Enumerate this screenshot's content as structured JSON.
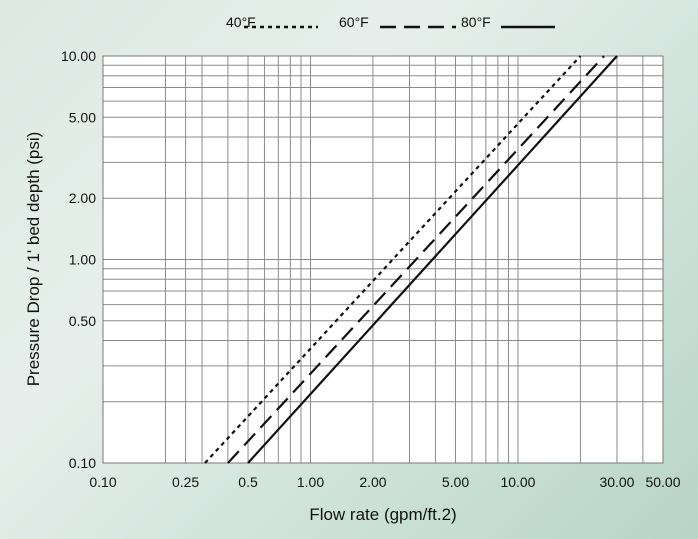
{
  "chart_data": {
    "type": "line",
    "xlabel": "Flow rate (gpm/ft.2)",
    "ylabel": "Pressure Drop / 1' bed depth (psi)",
    "x_scale": "log",
    "y_scale": "log",
    "xlim": [
      0.1,
      50
    ],
    "ylim": [
      0.1,
      10
    ],
    "x_ticks": [
      {
        "value": 0.1,
        "label": "0.10"
      },
      {
        "value": 0.25,
        "label": "0.25"
      },
      {
        "value": 0.5,
        "label": "0.5"
      },
      {
        "value": 1,
        "label": "1.00"
      },
      {
        "value": 2,
        "label": "2.00"
      },
      {
        "value": 5,
        "label": "5.00"
      },
      {
        "value": 10,
        "label": "10.00"
      },
      {
        "value": 30,
        "label": "30.00"
      },
      {
        "value": 50,
        "label": "50.00"
      }
    ],
    "y_ticks": [
      {
        "value": 0.1,
        "label": "0.10"
      },
      {
        "value": 0.5,
        "label": "0.50"
      },
      {
        "value": 1,
        "label": "1.00"
      },
      {
        "value": 2,
        "label": "2.00"
      },
      {
        "value": 5,
        "label": "5.00"
      },
      {
        "value": 10,
        "label": "10.00"
      }
    ],
    "x_grid": [
      0.1,
      0.2,
      0.25,
      0.3,
      0.4,
      0.5,
      0.6,
      0.7,
      0.8,
      0.9,
      1,
      2,
      3,
      4,
      5,
      6,
      7,
      8,
      9,
      10,
      20,
      30,
      40,
      50
    ],
    "y_grid": [
      0.1,
      0.2,
      0.3,
      0.4,
      0.5,
      0.6,
      0.7,
      0.8,
      0.9,
      1,
      2,
      3,
      4,
      5,
      6,
      7,
      8,
      9,
      10
    ],
    "grid": true,
    "legend_position": "top",
    "series": [
      {
        "name": "40°F",
        "style": "dotted",
        "color": "#111111",
        "x": [
          0.31,
          20
        ],
        "y": [
          0.1,
          10
        ]
      },
      {
        "name": "60°F",
        "style": "dashed",
        "color": "#111111",
        "x": [
          0.4,
          26
        ],
        "y": [
          0.1,
          10
        ]
      },
      {
        "name": "80°F",
        "style": "solid",
        "color": "#111111",
        "x": [
          0.5,
          30
        ],
        "y": [
          0.1,
          10
        ]
      }
    ]
  }
}
